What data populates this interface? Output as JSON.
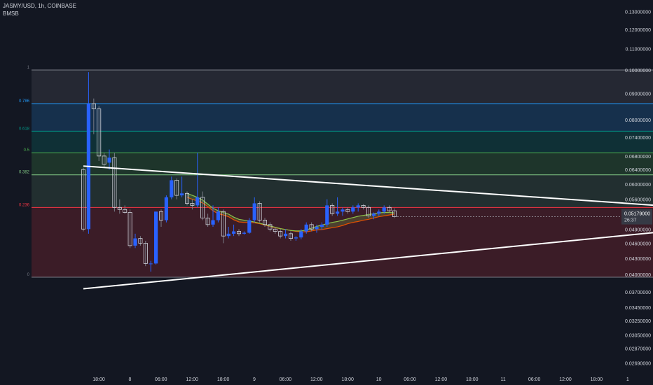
{
  "header": {
    "symbol": "JASMY/USD, 1h, COINBASE",
    "indicator": "BMSB"
  },
  "colors": {
    "background": "#131722",
    "bull": "#2962ff",
    "bear": "#787b86",
    "trendline": "#ffffff",
    "sma": "#e65100",
    "ema": "#8bc34a"
  },
  "chart_data": {
    "type": "candlestick",
    "symbol": "JASMY/USD",
    "interval": "1h",
    "exchange": "COINBASE",
    "y_scale": "log",
    "ylim": [
      0.0261,
      0.136
    ],
    "y_ticks": [
      "0.13000000",
      "0.12000000",
      "0.11000000",
      "0.10000000",
      "0.09000000",
      "0.08000000",
      "0.07400000",
      "0.06800000",
      "0.06400000",
      "0.06000000",
      "0.05600000",
      "0.04900000",
      "0.04600000",
      "0.04300000",
      "0.04000000",
      "0.03700000",
      "0.03450000",
      "0.03250000",
      "0.03050000",
      "0.02870000",
      "0.02690000"
    ],
    "x_ticks": [
      {
        "label": "18:00",
        "bar": 0
      },
      {
        "label": "8",
        "bar": 6
      },
      {
        "label": "06:00",
        "bar": 12
      },
      {
        "label": "12:00",
        "bar": 18
      },
      {
        "label": "18:00",
        "bar": 24
      },
      {
        "label": "9",
        "bar": 30
      },
      {
        "label": "06:00",
        "bar": 36
      },
      {
        "label": "12:00",
        "bar": 42
      },
      {
        "label": "18:00",
        "bar": 48
      },
      {
        "label": "10",
        "bar": 54
      },
      {
        "label": "06:00",
        "bar": 60
      },
      {
        "label": "12:00",
        "bar": 66
      },
      {
        "label": "18:00",
        "bar": 72
      },
      {
        "label": "11",
        "bar": 78
      },
      {
        "label": "06:00",
        "bar": 84
      },
      {
        "label": "12:00",
        "bar": 90
      },
      {
        "label": "18:00",
        "bar": 96
      },
      {
        "label": "1",
        "bar": 102
      }
    ],
    "candles": [
      [
        0.064,
        0.0645,
        0.0485,
        0.049
      ],
      [
        0.049,
        0.099,
        0.048,
        0.086
      ],
      [
        0.086,
        0.088,
        0.075,
        0.084
      ],
      [
        0.084,
        0.085,
        0.0665,
        0.068
      ],
      [
        0.068,
        0.069,
        0.0645,
        0.0655
      ],
      [
        0.066,
        0.07,
        0.064,
        0.0675
      ],
      [
        0.0675,
        0.069,
        0.053,
        0.054
      ],
      [
        0.054,
        0.056,
        0.0525,
        0.0535
      ],
      [
        0.0535,
        0.0545,
        0.0525,
        0.0528
      ],
      [
        0.0528,
        0.0535,
        0.045,
        0.0455
      ],
      [
        0.0455,
        0.048,
        0.045,
        0.047
      ],
      [
        0.047,
        0.0475,
        0.0455,
        0.046
      ],
      [
        0.046,
        0.0465,
        0.0415,
        0.042
      ],
      [
        0.042,
        0.0425,
        0.0405,
        0.042
      ],
      [
        0.042,
        0.053,
        0.0418,
        0.053
      ],
      [
        0.053,
        0.0535,
        0.0495,
        0.051
      ],
      [
        0.051,
        0.057,
        0.0505,
        0.0565
      ],
      [
        0.0565,
        0.062,
        0.056,
        0.061
      ],
      [
        0.061,
        0.0615,
        0.056,
        0.057
      ],
      [
        0.057,
        0.062,
        0.0565,
        0.0575
      ],
      [
        0.0575,
        0.058,
        0.0545,
        0.055
      ],
      [
        0.055,
        0.056,
        0.0535,
        0.0545
      ],
      [
        0.0545,
        0.069,
        0.054,
        0.0565
      ],
      [
        0.0565,
        0.058,
        0.051,
        0.0515
      ],
      [
        0.0515,
        0.0525,
        0.0495,
        0.05
      ],
      [
        0.05,
        0.0545,
        0.0495,
        0.051
      ],
      [
        0.051,
        0.054,
        0.0505,
        0.053
      ],
      [
        0.053,
        0.0535,
        0.046,
        0.0475
      ],
      [
        0.0475,
        0.0495,
        0.047,
        0.048
      ],
      [
        0.048,
        0.05,
        0.0475,
        0.0485
      ],
      [
        0.0485,
        0.049,
        0.0475,
        0.048
      ],
      [
        0.048,
        0.0485,
        0.0478,
        0.0482
      ],
      [
        0.0482,
        0.0515,
        0.048,
        0.051
      ],
      [
        0.051,
        0.0565,
        0.0505,
        0.055
      ],
      [
        0.055,
        0.0555,
        0.0505,
        0.051
      ],
      [
        0.051,
        0.0515,
        0.0495,
        0.05
      ],
      [
        0.05,
        0.0505,
        0.0485,
        0.049
      ],
      [
        0.049,
        0.0495,
        0.048,
        0.0485
      ],
      [
        0.0485,
        0.049,
        0.047,
        0.0475
      ],
      [
        0.0475,
        0.049,
        0.047,
        0.048
      ],
      [
        0.048,
        0.0485,
        0.0465,
        0.047
      ],
      [
        0.047,
        0.0475,
        0.0465,
        0.0472
      ],
      [
        0.0472,
        0.049,
        0.0468,
        0.0485
      ],
      [
        0.0485,
        0.0505,
        0.048,
        0.05
      ],
      [
        0.05,
        0.0505,
        0.0485,
        0.049
      ],
      [
        0.049,
        0.05,
        0.0482,
        0.0495
      ],
      [
        0.0495,
        0.0505,
        0.0488,
        0.05
      ],
      [
        0.05,
        0.056,
        0.0495,
        0.0545
      ],
      [
        0.0545,
        0.055,
        0.052,
        0.0525
      ],
      [
        0.0525,
        0.0565,
        0.052,
        0.053
      ],
      [
        0.053,
        0.054,
        0.052,
        0.0535
      ],
      [
        0.0535,
        0.054,
        0.0525,
        0.053
      ],
      [
        0.053,
        0.0545,
        0.0525,
        0.054
      ],
      [
        0.054,
        0.055,
        0.053,
        0.0545
      ],
      [
        0.0545,
        0.0548,
        0.0535,
        0.054
      ],
      [
        0.054,
        0.0545,
        0.0515,
        0.052
      ],
      [
        0.052,
        0.0528,
        0.0512,
        0.0525
      ],
      [
        0.0525,
        0.0535,
        0.052,
        0.053
      ],
      [
        0.053,
        0.0545,
        0.0525,
        0.054
      ],
      [
        0.054,
        0.0545,
        0.0528,
        0.0532
      ],
      [
        0.0532,
        0.0538,
        0.0515,
        0.0518
      ]
    ],
    "sma": [
      0.0565,
      0.056,
      0.0556,
      0.0551,
      0.0542,
      0.0532,
      0.0525,
      0.0522,
      0.0518,
      0.0511,
      0.0506,
      0.0505,
      0.0505,
      0.0504,
      0.0502,
      0.0499,
      0.0496,
      0.0493,
      0.0491,
      0.0489,
      0.0487,
      0.0485,
      0.0484,
      0.0484,
      0.0486,
      0.0488,
      0.0489,
      0.0491,
      0.0493,
      0.0495,
      0.0498,
      0.0502,
      0.0505,
      0.0507,
      0.051,
      0.0512,
      0.0515,
      0.0518,
      0.052,
      0.0522,
      0.0524
    ],
    "ema": [
      0.0575,
      0.057,
      0.0565,
      0.0558,
      0.0548,
      0.0538,
      0.0532,
      0.0528,
      0.0524,
      0.0517,
      0.0512,
      0.051,
      0.0508,
      0.0506,
      0.0503,
      0.05,
      0.0497,
      0.0494,
      0.0491,
      0.0489,
      0.0487,
      0.0486,
      0.0486,
      0.0488,
      0.0492,
      0.0496,
      0.0499,
      0.0502,
      0.0505,
      0.0507,
      0.051,
      0.0513,
      0.0516,
      0.0519,
      0.0521,
      0.0523,
      0.0525,
      0.0527,
      0.0528,
      0.0528,
      0.0527
    ],
    "ma_start_bar": 20,
    "fib_levels": [
      {
        "label": "1",
        "price": 0.1,
        "color": "#787b86",
        "fill": "rgba(120,123,134,0.18)"
      },
      {
        "label": "0.786",
        "price": 0.086,
        "color": "#2196f3",
        "fill": "rgba(33,150,243,0.20)"
      },
      {
        "label": "0.618",
        "price": 0.076,
        "color": "#009688",
        "fill": "rgba(0,150,136,0.20)"
      },
      {
        "label": "0.5",
        "price": 0.069,
        "color": "#4caf50",
        "fill": "rgba(76,175,80,0.20)"
      },
      {
        "label": "0.382",
        "price": 0.0625,
        "color": "#81c784",
        "fill": "rgba(129,199,132,0.14)"
      },
      {
        "label": "0.236",
        "price": 0.054,
        "color": "#f23645",
        "fill": "rgba(242,54,69,0.18)"
      },
      {
        "label": "0",
        "price": 0.0395,
        "color": "#787b86",
        "fill": null
      }
    ],
    "fib_range_bars": [
      -10,
      124
    ],
    "trendlines": [
      {
        "from_bar": 0,
        "from_price": 0.065,
        "to_bar": 128,
        "to_price": 0.053
      },
      {
        "from_bar": 0,
        "from_price": 0.0375,
        "to_bar": 130,
        "to_price": 0.0505
      }
    ],
    "last_price": {
      "value": "0.05179000",
      "countdown": "26:37"
    }
  }
}
